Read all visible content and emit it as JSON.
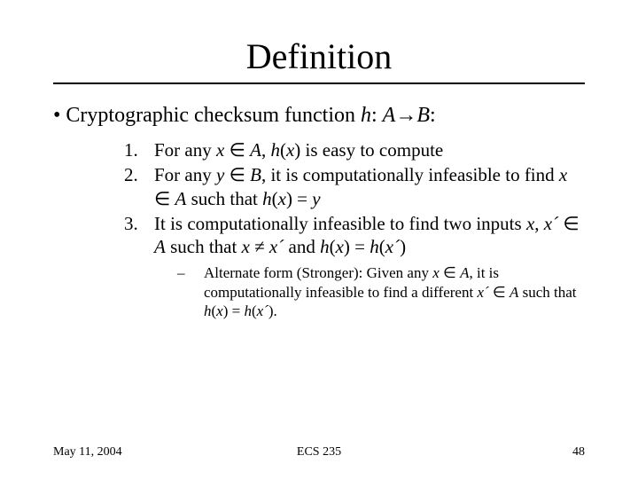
{
  "title": "Definition",
  "bullet": {
    "prefix": "• ",
    "text_parts": [
      {
        "t": "Cryptographic checksum function ",
        "i": false
      },
      {
        "t": "h",
        "i": true
      },
      {
        "t": ": ",
        "i": false
      },
      {
        "t": "A",
        "i": true
      },
      {
        "t": "→",
        "i": false
      },
      {
        "t": "B",
        "i": true
      },
      {
        "t": ":",
        "i": false
      }
    ]
  },
  "items": [
    {
      "num": "1.",
      "parts": [
        {
          "t": "For any ",
          "i": false
        },
        {
          "t": "x",
          "i": true
        },
        {
          "t": " ∈ ",
          "i": false
        },
        {
          "t": "A",
          "i": true
        },
        {
          "t": ", ",
          "i": false
        },
        {
          "t": "h",
          "i": true
        },
        {
          "t": "(",
          "i": false
        },
        {
          "t": "x",
          "i": true
        },
        {
          "t": ") is easy to compute",
          "i": false
        }
      ]
    },
    {
      "num": "2.",
      "parts": [
        {
          "t": "For any ",
          "i": false
        },
        {
          "t": "y",
          "i": true
        },
        {
          "t": " ∈ ",
          "i": false
        },
        {
          "t": "B",
          "i": true
        },
        {
          "t": ", it is computationally infeasible to find ",
          "i": false
        },
        {
          "t": "x",
          "i": true
        },
        {
          "t": " ∈ ",
          "i": false
        },
        {
          "t": "A",
          "i": true
        },
        {
          "t": " such that ",
          "i": false
        },
        {
          "t": "h",
          "i": true
        },
        {
          "t": "(",
          "i": false
        },
        {
          "t": "x",
          "i": true
        },
        {
          "t": ") = ",
          "i": false
        },
        {
          "t": "y",
          "i": true
        }
      ]
    },
    {
      "num": "3.",
      "parts": [
        {
          "t": "It is computationally infeasible to find two inputs ",
          "i": false
        },
        {
          "t": "x",
          "i": true
        },
        {
          "t": ", ",
          "i": false
        },
        {
          "t": "x´",
          "i": true
        },
        {
          "t": " ∈ ",
          "i": false
        },
        {
          "t": "A",
          "i": true
        },
        {
          "t": "  such that ",
          "i": false
        },
        {
          "t": "x",
          "i": true
        },
        {
          "t": " ≠ ",
          "i": false
        },
        {
          "t": "x´",
          "i": true
        },
        {
          "t": " and ",
          "i": false
        },
        {
          "t": "h",
          "i": true
        },
        {
          "t": "(",
          "i": false
        },
        {
          "t": "x",
          "i": true
        },
        {
          "t": ") = ",
          "i": false
        },
        {
          "t": "h",
          "i": true
        },
        {
          "t": "(",
          "i": false
        },
        {
          "t": "x´",
          "i": true
        },
        {
          "t": ")",
          "i": false
        }
      ]
    }
  ],
  "subitem": {
    "dash": "–",
    "parts": [
      {
        "t": "Alternate form (Stronger): Given any ",
        "i": false
      },
      {
        "t": "x",
        "i": true
      },
      {
        "t": " ∈ ",
        "i": false
      },
      {
        "t": "A",
        "i": true
      },
      {
        "t": ", it is computationally infeasible to find a different ",
        "i": false
      },
      {
        "t": "x´",
        "i": true
      },
      {
        "t": " ∈ ",
        "i": false
      },
      {
        "t": "A",
        "i": true
      },
      {
        "t": " such that ",
        "i": false
      },
      {
        "t": "h",
        "i": true
      },
      {
        "t": "(",
        "i": false
      },
      {
        "t": "x",
        "i": true
      },
      {
        "t": ") = ",
        "i": false
      },
      {
        "t": "h",
        "i": true
      },
      {
        "t": "(",
        "i": false
      },
      {
        "t": "x´",
        "i": true
      },
      {
        "t": ").",
        "i": false
      }
    ]
  },
  "footer": {
    "date": "May 11, 2004",
    "course": "ECS 235",
    "page": "48"
  }
}
